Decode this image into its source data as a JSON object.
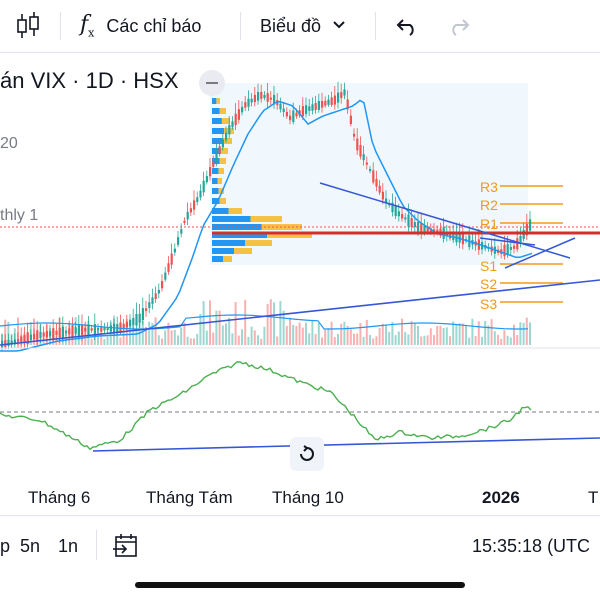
{
  "toolbar": {
    "indicators_label": "Các chỉ báo",
    "chart_type_label": "Biểu đồ"
  },
  "chart": {
    "title": "án VIX · 1D · HSX",
    "indicator_1": "20",
    "indicator_2": "thly 1",
    "pivot_labels": [
      "R3",
      "R2",
      "R1",
      "S1",
      "S2",
      "S3"
    ],
    "x_labels": [
      "Tháng 6",
      "Tháng Tám",
      "Tháng 10",
      "2026",
      "T"
    ],
    "colors": {
      "up": "#26a69a",
      "down": "#ef5350",
      "ma": "#2196f3",
      "trendline": "#3457d5",
      "pivot": "#f19a1c",
      "oscillator": "#4caf50",
      "volume_profile_up": "#2196f3",
      "volume_profile_down": "#f7c244"
    }
  },
  "bottombar": {
    "timeframes": [
      "p",
      "5n",
      "1n"
    ],
    "time": "15:35:18 (UTC"
  }
}
